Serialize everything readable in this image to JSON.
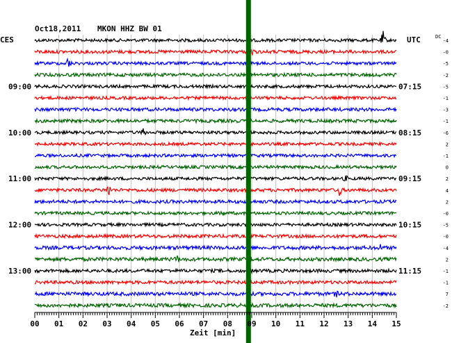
{
  "chart_data": {
    "type": "line",
    "header": {
      "date": "Oct18,2011",
      "station": "MKON HHZ BW 01"
    },
    "left_timezone": "CES",
    "right_timezone": "UTC",
    "dc_label": "DC",
    "xlabel": "Zeit [min]",
    "x_ticks": [
      "00",
      "01",
      "02",
      "03",
      "04",
      "05",
      "06",
      "07",
      "08",
      "09",
      "10",
      "11",
      "12",
      "13",
      "14",
      "15"
    ],
    "xlim": [
      0,
      15
    ],
    "left_hour_labels": [
      {
        "row": 4,
        "text": "09:00"
      },
      {
        "row": 8,
        "text": "10:00"
      },
      {
        "row": 12,
        "text": "11:00"
      },
      {
        "row": 16,
        "text": "12:00"
      },
      {
        "row": 20,
        "text": "13:00"
      }
    ],
    "right_hour_labels": [
      {
        "row": 4,
        "text": "07:15"
      },
      {
        "row": 8,
        "text": "08:15"
      },
      {
        "row": 12,
        "text": "09:15"
      },
      {
        "row": 16,
        "text": "10:15"
      },
      {
        "row": 20,
        "text": "11:15"
      }
    ],
    "dc_offsets": [
      "-4",
      "-0",
      "-5",
      "-2",
      "-5",
      "-1",
      "-3",
      "-1",
      "-6",
      "2",
      "-1",
      "0",
      "2",
      "4",
      "2",
      "-0",
      "-5",
      "-0",
      "-4",
      "2",
      "-1",
      "-1",
      "7",
      "-2"
    ],
    "trace_colors": [
      "#000000",
      "#ff0000",
      "#0000ff",
      "#006400"
    ],
    "series": [
      {
        "row": 0,
        "amplitude": 2.2,
        "events": [
          {
            "minute": 14.45,
            "amplitude": 12
          }
        ]
      },
      {
        "row": 1,
        "amplitude": 2.4,
        "events": [
          {
            "minute": 9.0,
            "amplitude": 4
          }
        ]
      },
      {
        "row": 2,
        "amplitude": 2.2,
        "events": [
          {
            "minute": 1.4,
            "amplitude": 9
          }
        ]
      },
      {
        "row": 3,
        "amplitude": 2.4,
        "events": []
      },
      {
        "row": 4,
        "amplitude": 2.2,
        "events": []
      },
      {
        "row": 5,
        "amplitude": 2.2,
        "events": []
      },
      {
        "row": 6,
        "amplitude": 2.4,
        "events": []
      },
      {
        "row": 7,
        "amplitude": 2.4,
        "events": []
      },
      {
        "row": 8,
        "amplitude": 2.2,
        "events": [
          {
            "minute": 4.5,
            "amplitude": 5
          }
        ]
      },
      {
        "row": 9,
        "amplitude": 2.2,
        "events": []
      },
      {
        "row": 10,
        "amplitude": 2.2,
        "events": []
      },
      {
        "row": 11,
        "amplitude": 2.2,
        "events": []
      },
      {
        "row": 12,
        "amplitude": 2.2,
        "events": [
          {
            "minute": 12.9,
            "amplitude": 3
          }
        ]
      },
      {
        "row": 13,
        "amplitude": 2.4,
        "events": [
          {
            "minute": 3.05,
            "amplitude": 9
          },
          {
            "minute": 12.65,
            "amplitude": 7
          }
        ]
      },
      {
        "row": 14,
        "amplitude": 2.4,
        "events": []
      },
      {
        "row": 15,
        "amplitude": 2.2,
        "events": [
          {
            "minute": 7.75,
            "amplitude": 5
          }
        ]
      },
      {
        "row": 16,
        "amplitude": 2.2,
        "events": []
      },
      {
        "row": 17,
        "amplitude": 2.4,
        "events": []
      },
      {
        "row": 18,
        "amplitude": 2.6,
        "events": [
          {
            "minute": 14.3,
            "amplitude": 4
          }
        ]
      },
      {
        "row": 19,
        "amplitude": 2.6,
        "events": [
          {
            "minute": 5.9,
            "amplitude": 5
          },
          {
            "minute": 8.9,
            "amplitude": 6
          }
        ]
      },
      {
        "row": 20,
        "amplitude": 2.4,
        "events": [
          {
            "minute": 8.9,
            "amplitude": 5
          }
        ]
      },
      {
        "row": 21,
        "amplitude": 2.4,
        "events": []
      },
      {
        "row": 22,
        "amplitude": 2.6,
        "events": [
          {
            "minute": 12.5,
            "amplitude": 3
          }
        ]
      },
      {
        "row": 23,
        "amplitude": 2.6,
        "events": []
      }
    ],
    "marker": {
      "minute": 8.85,
      "color": "#006400"
    },
    "grid": true
  }
}
